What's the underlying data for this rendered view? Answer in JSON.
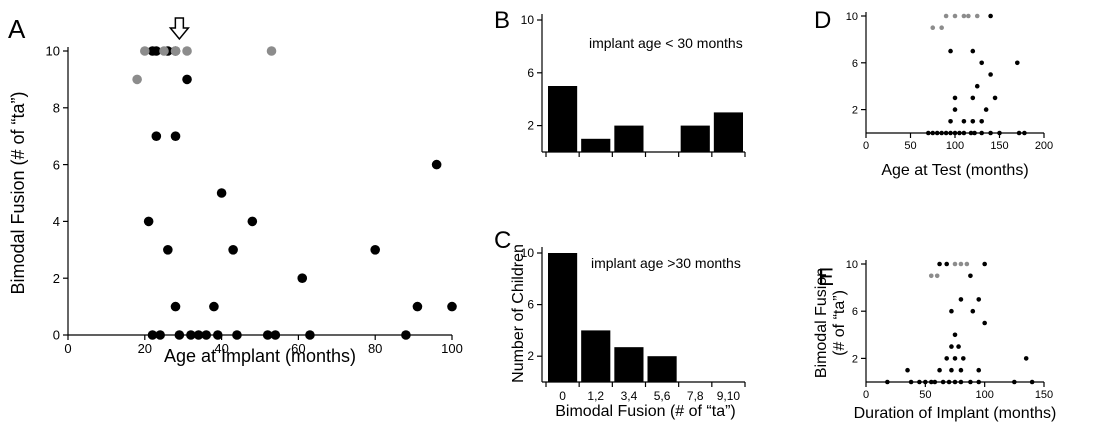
{
  "colors": {
    "dark": "#000000",
    "gray": "#8c8c8c",
    "bar": "#000000"
  },
  "chart_data": [
    {
      "panel": "A",
      "type": "scatter",
      "xlabel": "Age at Implant (months)",
      "ylabel": "Bimodal Fusion (# of “ta”)",
      "xlim": [
        0,
        100
      ],
      "ylim": [
        0,
        10
      ],
      "xticks": [
        0,
        20,
        40,
        60,
        80,
        100
      ],
      "yticks": [
        0,
        2,
        4,
        6,
        8,
        10
      ],
      "points_dark": [
        [
          22,
          10
        ],
        [
          23,
          10
        ],
        [
          26,
          10
        ],
        [
          28,
          10
        ],
        [
          21,
          4
        ],
        [
          23,
          7
        ],
        [
          26,
          3
        ],
        [
          28,
          7
        ],
        [
          28,
          1
        ],
        [
          31,
          9
        ],
        [
          22,
          0
        ],
        [
          24,
          0
        ],
        [
          29,
          0
        ],
        [
          32,
          0
        ],
        [
          34,
          0
        ],
        [
          36,
          0
        ],
        [
          38,
          1
        ],
        [
          39,
          0
        ],
        [
          40,
          5
        ],
        [
          43,
          3
        ],
        [
          44,
          0
        ],
        [
          48,
          4
        ],
        [
          52,
          0
        ],
        [
          54,
          0
        ],
        [
          61,
          2
        ],
        [
          63,
          0
        ],
        [
          80,
          3
        ],
        [
          88,
          0
        ],
        [
          91,
          1
        ],
        [
          96,
          6
        ],
        [
          100,
          1
        ]
      ],
      "points_gray": [
        [
          18,
          9
        ],
        [
          20,
          10
        ],
        [
          25,
          10
        ],
        [
          28,
          10
        ],
        [
          31,
          10
        ],
        [
          53,
          10
        ]
      ],
      "arrow_x": 29
    },
    {
      "panel": "B",
      "type": "bar",
      "annotation": "implant age < 30 months",
      "categories": [
        "0",
        "1,2",
        "3,4",
        "5,6",
        "7,8",
        "9,10"
      ],
      "values": [
        5,
        1,
        2,
        0,
        2,
        3
      ],
      "ylim": [
        0,
        10
      ],
      "yticks": [
        2,
        6,
        10
      ]
    },
    {
      "panel": "C",
      "type": "bar",
      "annotation": "implant age >30 months",
      "xlabel": "Bimodal Fusion (# of “ta”)",
      "ylabel": "Number of Children",
      "categories": [
        "0",
        "1,2",
        "3,4",
        "5,6",
        "7,8",
        "9,10"
      ],
      "values": [
        10,
        4,
        2.7,
        2,
        0,
        0
      ],
      "ylim": [
        0,
        10
      ],
      "yticks": [
        2,
        6,
        10
      ]
    },
    {
      "panel": "D",
      "type": "scatter",
      "xlabel": "Age at Test (months)",
      "xlim": [
        0,
        200
      ],
      "ylim": [
        0,
        10
      ],
      "xticks": [
        0,
        50,
        100,
        150,
        200
      ],
      "yticks": [
        2,
        6,
        10
      ],
      "points_dark": [
        [
          70,
          0
        ],
        [
          75,
          0
        ],
        [
          80,
          0
        ],
        [
          85,
          0
        ],
        [
          90,
          0
        ],
        [
          95,
          0
        ],
        [
          100,
          0
        ],
        [
          105,
          0
        ],
        [
          110,
          0
        ],
        [
          118,
          0
        ],
        [
          122,
          0
        ],
        [
          130,
          0
        ],
        [
          140,
          0
        ],
        [
          150,
          0
        ],
        [
          172,
          0
        ],
        [
          178,
          0
        ],
        [
          95,
          1
        ],
        [
          110,
          1
        ],
        [
          120,
          1
        ],
        [
          130,
          1
        ],
        [
          100,
          2
        ],
        [
          135,
          2
        ],
        [
          100,
          3
        ],
        [
          120,
          3
        ],
        [
          145,
          3
        ],
        [
          125,
          4
        ],
        [
          140,
          5
        ],
        [
          130,
          6
        ],
        [
          170,
          6
        ],
        [
          95,
          7
        ],
        [
          120,
          7
        ],
        [
          140,
          10
        ]
      ],
      "points_gray": [
        [
          75,
          9
        ],
        [
          85,
          9
        ],
        [
          90,
          10
        ],
        [
          100,
          10
        ],
        [
          110,
          10
        ],
        [
          115,
          10
        ],
        [
          125,
          10
        ]
      ]
    },
    {
      "panel": "E",
      "type": "scatter",
      "xlabel": "Duration of Implant (months)",
      "ylabel": "Bimodal Fusion (# of “ta”)",
      "xlim": [
        0,
        150
      ],
      "ylim": [
        0,
        10
      ],
      "xticks": [
        0,
        50,
        100,
        150
      ],
      "yticks": [
        2,
        6,
        10
      ],
      "points_dark": [
        [
          18,
          0
        ],
        [
          38,
          0
        ],
        [
          45,
          0
        ],
        [
          50,
          0
        ],
        [
          55,
          0
        ],
        [
          58,
          0
        ],
        [
          65,
          0
        ],
        [
          70,
          0
        ],
        [
          75,
          0
        ],
        [
          80,
          0
        ],
        [
          88,
          0
        ],
        [
          95,
          0
        ],
        [
          125,
          0
        ],
        [
          140,
          0
        ],
        [
          35,
          1
        ],
        [
          62,
          1
        ],
        [
          72,
          1
        ],
        [
          80,
          1
        ],
        [
          95,
          1
        ],
        [
          68,
          2
        ],
        [
          75,
          2
        ],
        [
          82,
          2
        ],
        [
          135,
          2
        ],
        [
          72,
          3
        ],
        [
          78,
          3
        ],
        [
          75,
          4
        ],
        [
          100,
          5
        ],
        [
          72,
          6
        ],
        [
          90,
          6
        ],
        [
          80,
          7
        ],
        [
          95,
          7
        ],
        [
          88,
          9
        ],
        [
          62,
          10
        ],
        [
          68,
          10
        ],
        [
          100,
          10
        ]
      ],
      "points_gray": [
        [
          55,
          9
        ],
        [
          60,
          9
        ],
        [
          75,
          10
        ],
        [
          80,
          10
        ],
        [
          85,
          10
        ]
      ]
    }
  ]
}
